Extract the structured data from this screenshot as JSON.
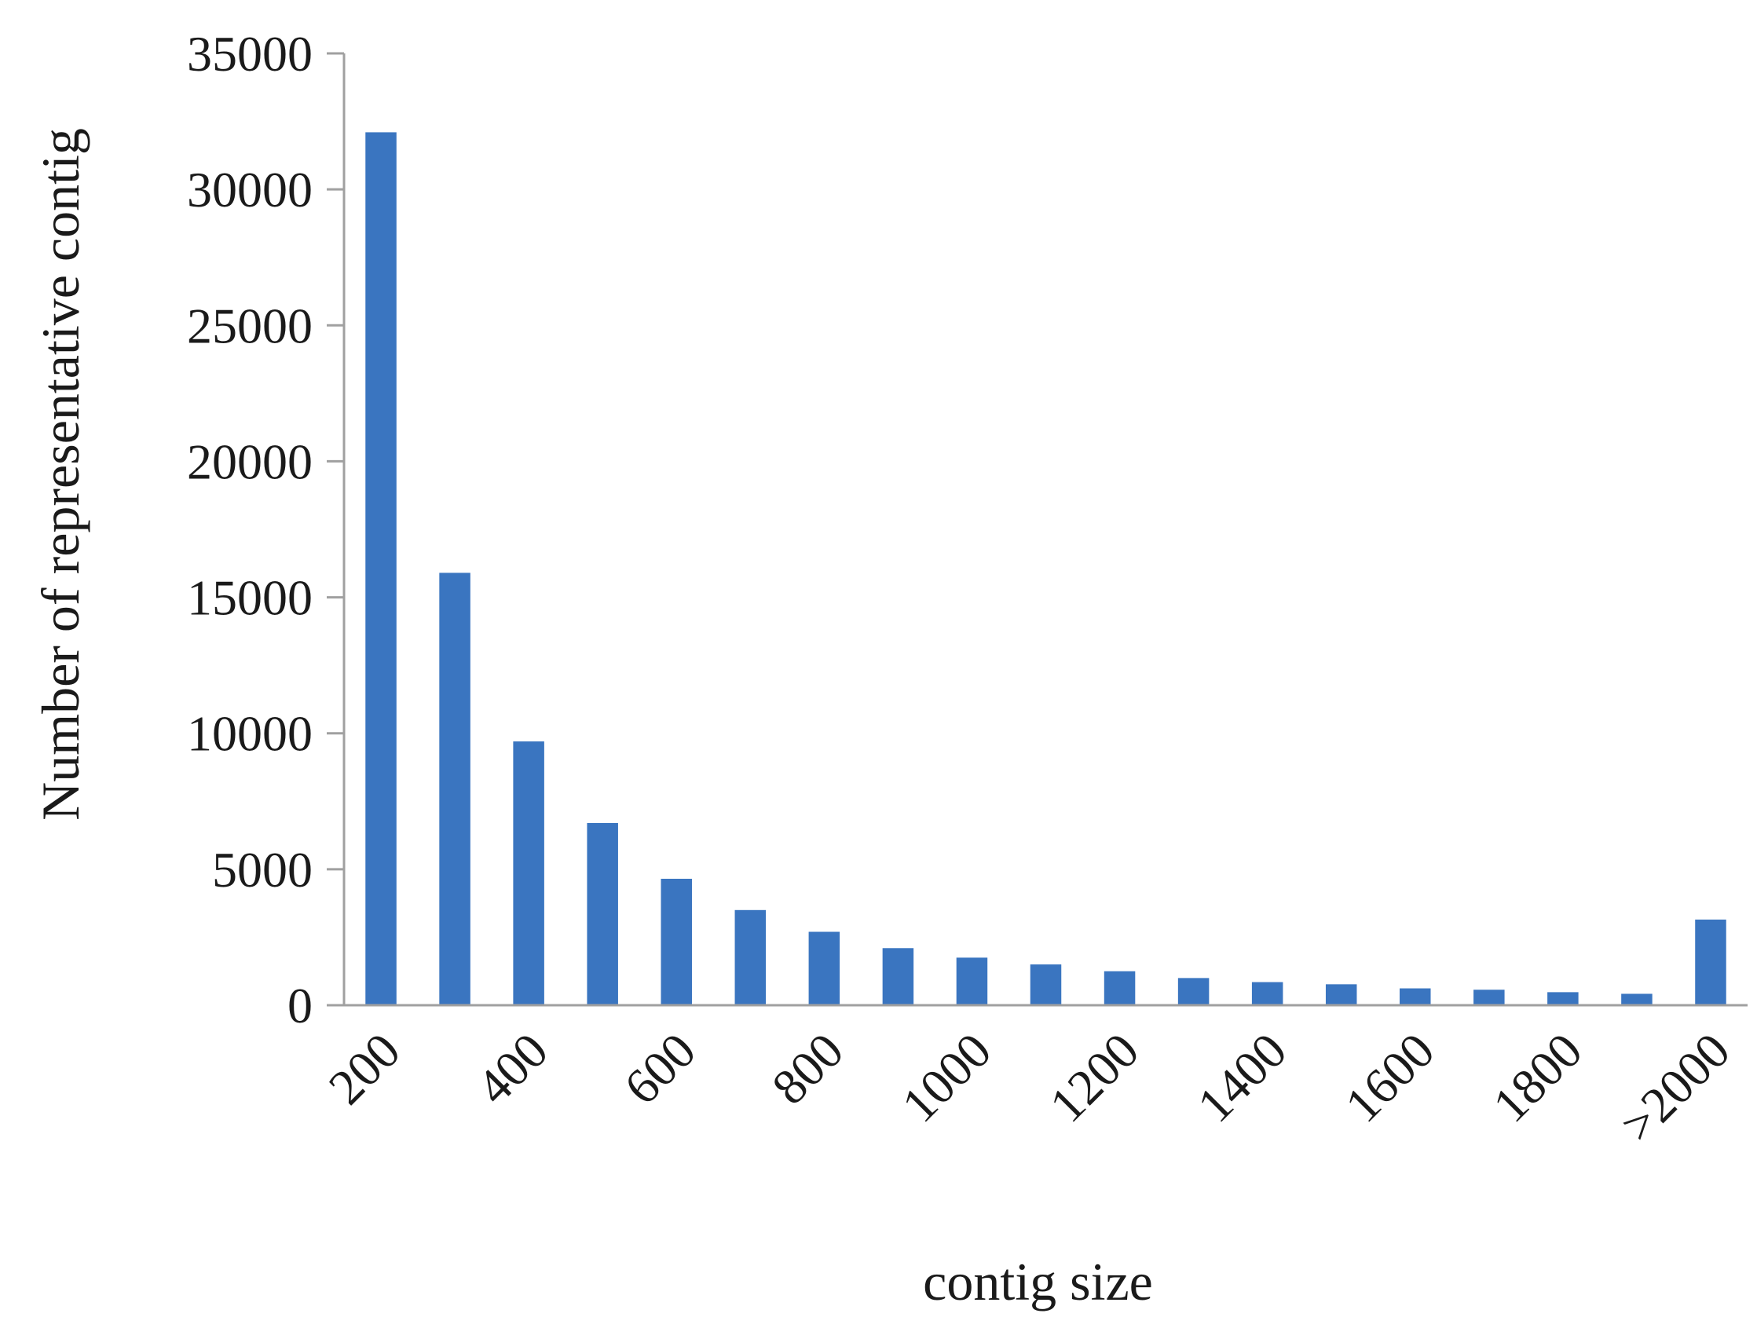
{
  "chart_data": {
    "type": "bar",
    "xlabel": "contig size",
    "ylabel": "Number of representative contig",
    "ylim": [
      0,
      35000
    ],
    "yticks": [
      0,
      5000,
      10000,
      15000,
      20000,
      25000,
      30000,
      35000
    ],
    "grid": false,
    "legend": "none",
    "bar_color": "#3a75c0",
    "categories": [
      "200",
      "300",
      "400",
      "500",
      "600",
      "700",
      "800",
      "900",
      "1000",
      "1100",
      "1200",
      "1300",
      "1400",
      "1500",
      "1600",
      "1700",
      "1800",
      "1900",
      ">2000"
    ],
    "tick_labels": [
      "200",
      "",
      "400",
      "",
      "600",
      "",
      "800",
      "",
      "1000",
      "",
      "1200",
      "",
      "1400",
      "",
      "1600",
      "",
      "1800",
      "",
      ">2000"
    ],
    "values": [
      32100,
      15900,
      9700,
      6700,
      4650,
      3500,
      2700,
      2100,
      1750,
      1500,
      1250,
      1000,
      850,
      770,
      620,
      570,
      480,
      420,
      3150
    ]
  }
}
